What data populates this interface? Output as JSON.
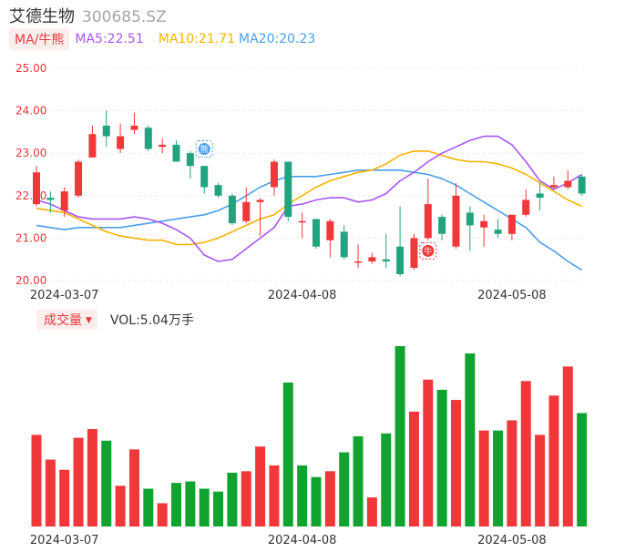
{
  "header": {
    "name": "艾德生物",
    "code": "300685.SZ"
  },
  "ma_legend": {
    "toggle_label": "MA/牛熊",
    "ma5_label": "MA5:22.51",
    "ma10_label": "MA10:21.71",
    "ma20_label": "MA20:20.23"
  },
  "volume_legend": {
    "toggle_label": "成交量",
    "value_label": "VOL:5.04万手"
  },
  "colors": {
    "up": "#f0373a",
    "down": "#21a37e",
    "vol_down": "#10a32f",
    "ma5": "#a855f7",
    "ma10": "#f5b400",
    "ma20": "#4a9fe8"
  },
  "markers": {
    "sell_icon": "熊",
    "buy_icon": "牛"
  },
  "chart_data": [
    {
      "type": "candlestick",
      "y_ticks": [
        "25.00",
        "24.00",
        "23.00",
        "22.00",
        "21.00",
        "20.00"
      ],
      "ylim": [
        20.0,
        25.0
      ],
      "x_tick_labels": [
        {
          "index": 2,
          "label": "2024-03-07"
        },
        {
          "index": 19,
          "label": "2024-04-08"
        },
        {
          "index": 34,
          "label": "2024-05-08"
        }
      ],
      "candles": [
        {
          "o": 21.8,
          "c": 22.55,
          "h": 22.7,
          "l": 21.75
        },
        {
          "o": 21.95,
          "c": 21.9,
          "h": 22.1,
          "l": 21.6
        },
        {
          "o": 21.65,
          "c": 22.1,
          "h": 22.2,
          "l": 21.5
        },
        {
          "o": 22.0,
          "c": 22.8,
          "h": 22.85,
          "l": 21.95
        },
        {
          "o": 22.9,
          "c": 23.45,
          "h": 23.65,
          "l": 22.9
        },
        {
          "o": 23.65,
          "c": 23.4,
          "h": 24.0,
          "l": 23.15
        },
        {
          "o": 23.1,
          "c": 23.4,
          "h": 23.7,
          "l": 23.0
        },
        {
          "o": 23.55,
          "c": 23.65,
          "h": 23.95,
          "l": 23.45
        },
        {
          "o": 23.6,
          "c": 23.1,
          "h": 23.65,
          "l": 23.05
        },
        {
          "o": 23.15,
          "c": 23.2,
          "h": 23.35,
          "l": 23.0
        },
        {
          "o": 23.2,
          "c": 22.8,
          "h": 23.3,
          "l": 22.8
        },
        {
          "o": 23.0,
          "c": 22.7,
          "h": 23.05,
          "l": 22.4
        },
        {
          "o": 22.7,
          "c": 22.2,
          "h": 22.7,
          "l": 22.05
        },
        {
          "o": 22.25,
          "c": 22.0,
          "h": 22.3,
          "l": 21.95
        },
        {
          "o": 22.0,
          "c": 21.35,
          "h": 22.05,
          "l": 21.3
        },
        {
          "o": 21.4,
          "c": 21.85,
          "h": 22.2,
          "l": 21.35
        },
        {
          "o": 21.85,
          "c": 21.9,
          "h": 21.95,
          "l": 21.05
        },
        {
          "o": 22.2,
          "c": 22.8,
          "h": 22.85,
          "l": 22.0
        },
        {
          "o": 22.8,
          "c": 21.5,
          "h": 22.8,
          "l": 21.4
        },
        {
          "o": 21.4,
          "c": 21.4,
          "h": 21.6,
          "l": 21.0
        },
        {
          "o": 21.45,
          "c": 20.8,
          "h": 21.45,
          "l": 20.75
        },
        {
          "o": 20.95,
          "c": 21.4,
          "h": 21.45,
          "l": 20.55
        },
        {
          "o": 21.15,
          "c": 20.55,
          "h": 21.3,
          "l": 20.5
        },
        {
          "o": 20.45,
          "c": 20.45,
          "h": 20.85,
          "l": 20.3
        },
        {
          "o": 20.45,
          "c": 20.55,
          "h": 20.65,
          "l": 20.4
        },
        {
          "o": 20.5,
          "c": 20.45,
          "h": 21.1,
          "l": 20.3
        },
        {
          "o": 20.8,
          "c": 20.15,
          "h": 21.75,
          "l": 20.1
        },
        {
          "o": 20.3,
          "c": 21.0,
          "h": 21.1,
          "l": 20.25
        },
        {
          "o": 21.0,
          "c": 21.8,
          "h": 22.4,
          "l": 20.95
        },
        {
          "o": 21.5,
          "c": 21.1,
          "h": 21.55,
          "l": 20.95
        },
        {
          "o": 20.8,
          "c": 22.0,
          "h": 22.3,
          "l": 20.75
        },
        {
          "o": 21.6,
          "c": 21.3,
          "h": 21.75,
          "l": 20.7
        },
        {
          "o": 21.25,
          "c": 21.4,
          "h": 21.55,
          "l": 20.8
        },
        {
          "o": 21.2,
          "c": 21.1,
          "h": 21.45,
          "l": 21.0
        },
        {
          "o": 21.1,
          "c": 21.55,
          "h": 21.55,
          "l": 20.95
        },
        {
          "o": 21.55,
          "c": 21.9,
          "h": 22.15,
          "l": 21.5
        },
        {
          "o": 22.05,
          "c": 21.95,
          "h": 22.3,
          "l": 21.65
        },
        {
          "o": 22.2,
          "c": 22.25,
          "h": 22.45,
          "l": 22.15
        },
        {
          "o": 22.2,
          "c": 22.35,
          "h": 22.6,
          "l": 22.15
        },
        {
          "o": 22.45,
          "c": 22.05,
          "h": 22.5,
          "l": 22.0
        }
      ],
      "ma5": [
        21.9,
        21.8,
        21.65,
        21.5,
        21.45,
        21.45,
        21.45,
        21.5,
        21.45,
        21.35,
        21.2,
        21.0,
        20.6,
        20.45,
        20.5,
        20.75,
        21.0,
        21.25,
        21.75,
        21.8,
        21.9,
        21.95,
        21.95,
        21.85,
        21.9,
        22.05,
        22.35,
        22.55,
        22.8,
        23.0,
        23.15,
        23.3,
        23.4,
        23.4,
        23.2,
        22.8,
        22.35,
        22.15,
        22.3,
        22.5
      ],
      "ma10": [
        21.7,
        21.65,
        21.6,
        21.45,
        21.3,
        21.15,
        21.05,
        21.0,
        20.95,
        20.95,
        20.85,
        20.85,
        20.9,
        21.0,
        21.15,
        21.3,
        21.45,
        21.55,
        21.8,
        22.0,
        22.2,
        22.35,
        22.45,
        22.55,
        22.6,
        22.75,
        22.95,
        23.05,
        23.05,
        22.95,
        22.85,
        22.8,
        22.8,
        22.75,
        22.65,
        22.5,
        22.3,
        22.1,
        21.9,
        21.75
      ],
      "ma20": [
        21.3,
        21.25,
        21.2,
        21.25,
        21.25,
        21.25,
        21.25,
        21.3,
        21.35,
        21.4,
        21.45,
        21.5,
        21.55,
        21.65,
        21.8,
        22.0,
        22.2,
        22.35,
        22.45,
        22.45,
        22.45,
        22.5,
        22.55,
        22.6,
        22.6,
        22.6,
        22.6,
        22.55,
        22.5,
        22.4,
        22.25,
        22.05,
        21.85,
        21.65,
        21.45,
        21.25,
        20.9,
        20.7,
        20.45,
        20.25
      ],
      "signals": [
        {
          "index": 12,
          "type": "sell",
          "price": 23.1
        },
        {
          "index": 28,
          "type": "buy",
          "price": 20.7
        }
      ]
    },
    {
      "type": "bar",
      "series": [
        {
          "values": [
            6.3,
            4.6,
            3.9,
            6.1,
            6.7,
            5.9,
            2.8,
            5.3,
            2.6,
            1.6,
            3.0,
            3.1,
            2.6,
            2.4,
            3.7,
            3.8,
            5.5,
            4.2,
            9.9,
            4.2,
            3.4,
            3.8,
            5.1,
            6.2,
            2.0,
            6.4,
            12.4,
            7.9,
            10.1,
            9.4,
            8.7,
            11.9,
            6.6,
            6.6,
            7.3,
            10.0,
            6.3,
            9.0,
            11.0,
            7.8
          ]
        }
      ],
      "up": [
        true,
        true,
        true,
        true,
        true,
        false,
        true,
        true,
        false,
        true,
        false,
        false,
        false,
        false,
        false,
        true,
        true,
        true,
        false,
        false,
        false,
        true,
        false,
        false,
        true,
        false,
        false,
        true,
        true,
        false,
        true,
        false,
        true,
        false,
        true,
        true,
        true,
        true,
        true,
        false
      ]
    }
  ]
}
